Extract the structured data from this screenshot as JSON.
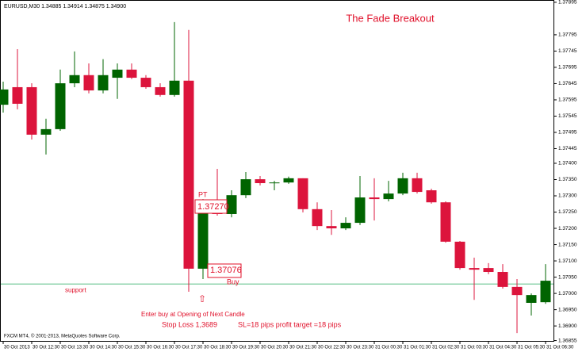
{
  "chart_data": {
    "type": "candlestick",
    "title": "The Fade Breakout",
    "symbol_info": "EURUSD,M30  1.34885 1.34914 1.34875 1.34900",
    "footer": "FXCM MT4, © 2001-2013, MetaQuotes Software Corp.",
    "categories": [
      "30 Oct 2013",
      null,
      "30 Oct 12:30",
      null,
      "30 Oct 13:30",
      null,
      "30 Oct 14:30",
      null,
      "30 Oct 15:30",
      null,
      "30 Oct 16:30",
      null,
      "30 Oct 17:30",
      null,
      "30 Oct 18:30",
      null,
      "30 Oct 19:30",
      null,
      "30 Oct 20:30",
      null,
      "30 Oct 21:30",
      null,
      "30 Oct 22:30",
      null,
      "30 Oct 23:30",
      null,
      "31 Oct 00:30",
      null,
      "31 Oct 01:30",
      null,
      "31 Oct 02:30",
      null,
      "31 Oct 03:30",
      null,
      "31 Oct 04:30",
      null,
      "31 Oct 05:30",
      null,
      "31 Oct 06:30"
    ],
    "open": [
      1.3758,
      1.37634,
      1.37634,
      1.37488,
      1.37505,
      1.37646,
      1.37671,
      1.37624,
      1.37663,
      1.37688,
      1.37663,
      1.37634,
      1.3761,
      1.37654,
      1.37076,
      1.37259,
      1.37244,
      1.37302,
      1.37351,
      1.37339,
      1.37341,
      1.37354,
      1.37259,
      1.37207,
      1.372,
      1.37217,
      1.37295,
      1.3729,
      1.37307,
      1.37354,
      1.37317,
      1.3728,
      1.37159,
      1.37078,
      1.37078,
      1.37066,
      1.3702,
      1.36971,
      1.36973
    ],
    "high": [
      1.37651,
      1.37751,
      1.37646,
      1.37537,
      1.37688,
      1.37744,
      1.37707,
      1.3772,
      1.37707,
      1.37707,
      1.37671,
      1.37646,
      1.37834,
      1.3781,
      1.3729,
      1.37383,
      1.37317,
      1.37373,
      1.37361,
      1.37346,
      1.37359,
      1.37354,
      1.3728,
      1.37256,
      1.37234,
      1.37361,
      1.37354,
      1.37346,
      1.37371,
      1.37371,
      1.37322,
      1.37283,
      1.37161,
      1.3711,
      1.37093,
      1.3709,
      1.37044,
      1.37,
      1.3709
    ],
    "low": [
      1.37556,
      1.37566,
      1.37473,
      1.37427,
      1.375,
      1.37634,
      1.37615,
      1.37615,
      1.37598,
      1.37659,
      1.37629,
      1.37605,
      1.37605,
      1.37005,
      1.37044,
      1.37239,
      1.37234,
      1.37293,
      1.37332,
      1.37317,
      1.37337,
      1.37249,
      1.37195,
      1.3718,
      1.37195,
      1.3721,
      1.37224,
      1.37283,
      1.37302,
      1.37307,
      1.37276,
      1.37156,
      1.37073,
      1.3698,
      1.37059,
      1.37015,
      1.36878,
      1.36932,
      1.36968
    ],
    "close": [
      1.37627,
      1.37583,
      1.37488,
      1.37505,
      1.37646,
      1.37671,
      1.37624,
      1.37671,
      1.37688,
      1.37663,
      1.37634,
      1.3761,
      1.37654,
      1.37076,
      1.37259,
      1.37244,
      1.37302,
      1.37351,
      1.37339,
      1.37341,
      1.37354,
      1.37259,
      1.37207,
      1.372,
      1.37217,
      1.37295,
      1.3729,
      1.37307,
      1.37354,
      1.37312,
      1.3728,
      1.37159,
      1.37078,
      1.37073,
      1.37066,
      1.3702,
      1.36995,
      1.36995,
      1.37039
    ],
    "up_color": "#006400",
    "down_color": "#dc143c",
    "annotation_color": "#e0102a",
    "ylim": [
      1.36854,
      1.37902
    ],
    "yticks": [
      {
        "value": 1.37895,
        "label": "1.37895"
      },
      {
        "value": 1.37795,
        "label": "1.37795"
      },
      {
        "value": 1.37745,
        "label": "1.37745"
      },
      {
        "value": 1.37695,
        "label": "1.37695"
      },
      {
        "value": 1.37645,
        "label": "1.37645"
      },
      {
        "value": 1.37595,
        "label": "1.37595"
      },
      {
        "value": 1.37545,
        "label": "1.37545"
      },
      {
        "value": 1.37495,
        "label": "1.37495"
      },
      {
        "value": 1.37445,
        "label": "1.37445"
      },
      {
        "value": 1.374,
        "label": "1.37400"
      },
      {
        "value": 1.3735,
        "label": "1.37350"
      },
      {
        "value": 1.373,
        "label": "1.37300"
      },
      {
        "value": 1.3725,
        "label": "1.37250"
      },
      {
        "value": 1.372,
        "label": "1.37200"
      },
      {
        "value": 1.3715,
        "label": "1.37150"
      },
      {
        "value": 1.371,
        "label": "1.37100"
      },
      {
        "value": 1.3705,
        "label": "1.37050"
      },
      {
        "value": 1.37,
        "label": "1.37000"
      },
      {
        "value": 1.3695,
        "label": "1.36950"
      },
      {
        "value": 1.369,
        "label": "1.36900"
      },
      {
        "value": 1.36855,
        "label": "1.36855"
      }
    ],
    "support": {
      "label": "support",
      "value": 1.37029,
      "color": "#3cb371"
    },
    "annotations": [
      "PT",
      "1.37270",
      "1.37076",
      "Buy",
      "⇧",
      "Enter buy at Opening of Next Candle",
      "Stop Loss 1,3689",
      "SL=18 pips profit target =18 pips"
    ]
  }
}
